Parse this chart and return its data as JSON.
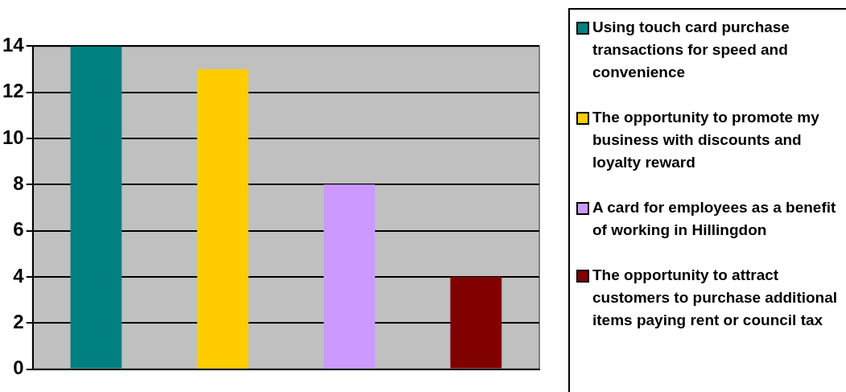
{
  "chart_data": {
    "type": "bar",
    "categories": [
      null,
      null,
      null,
      null
    ],
    "series": [
      {
        "name": "Using touch card purchase transactions for speed and convenience",
        "color": "#008080",
        "values": [
          14,
          null,
          null,
          null
        ]
      },
      {
        "name": "The opportunity to promote my business with discounts and loyalty reward",
        "color": "#ffcc00",
        "values": [
          null,
          13,
          null,
          null
        ]
      },
      {
        "name": "A card for employees as a benefit of working in Hillingdon",
        "color": "#cc99ff",
        "values": [
          null,
          null,
          8,
          null
        ]
      },
      {
        "name": "The opportunity to attract customers to purchase additional items paying rent or council tax",
        "color": "#800000",
        "values": [
          null,
          null,
          null,
          4
        ]
      }
    ],
    "ylim": [
      0,
      14
    ],
    "yticks": [
      0,
      2,
      4,
      6,
      8,
      10,
      12,
      14
    ],
    "grid": "y",
    "legend": "right"
  }
}
